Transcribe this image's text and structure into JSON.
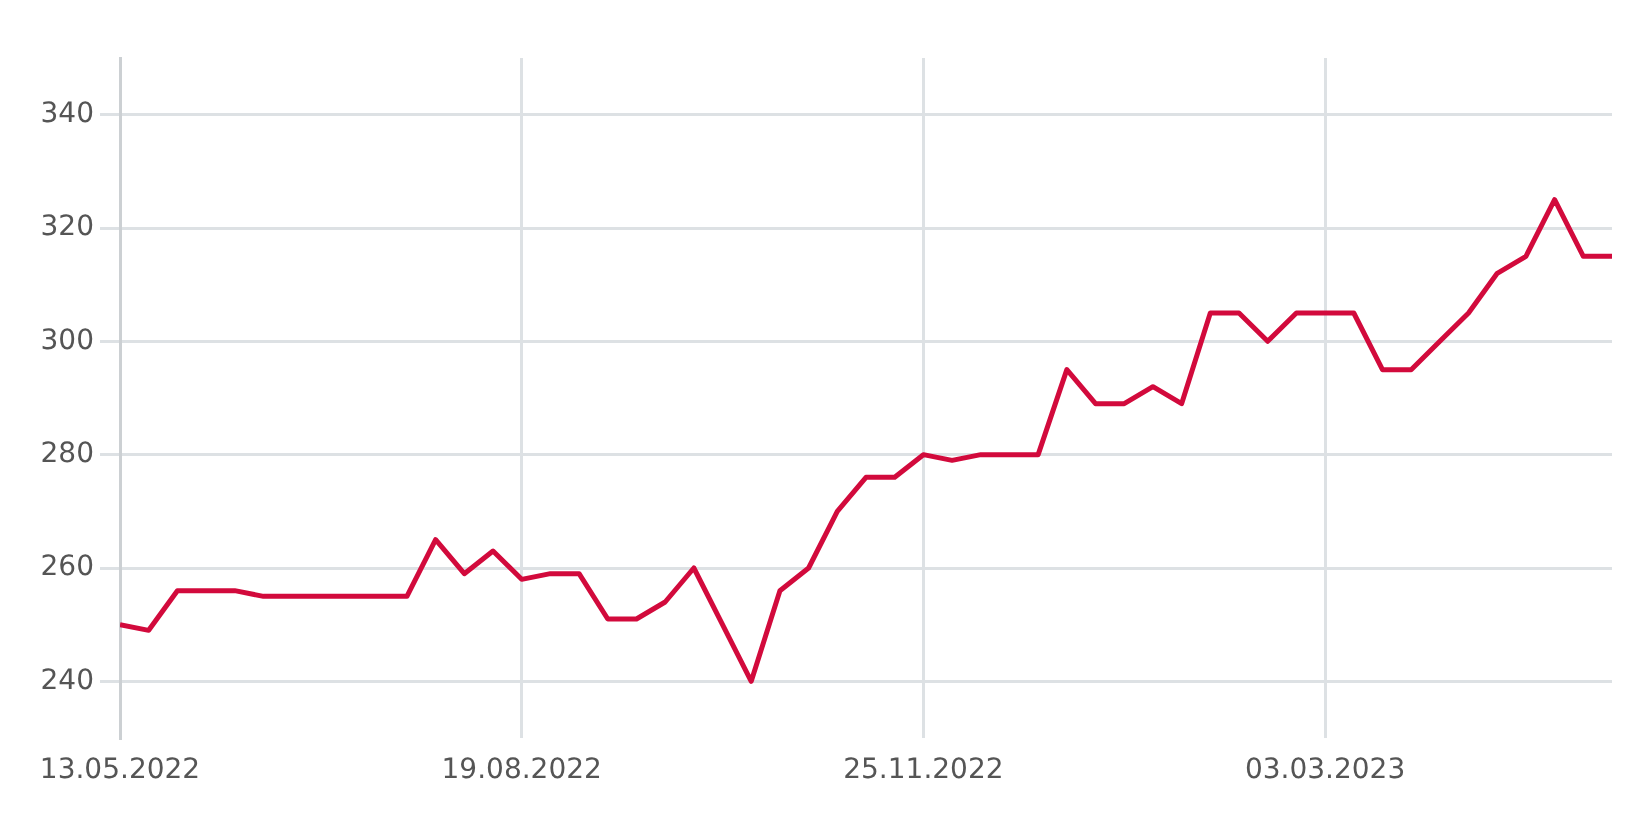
{
  "chart_data": {
    "type": "line",
    "x": [
      "2022-05-13",
      "2022-05-20",
      "2022-05-27",
      "2022-06-03",
      "2022-06-10",
      "2022-06-17",
      "2022-06-24",
      "2022-07-01",
      "2022-07-08",
      "2022-07-15",
      "2022-07-22",
      "2022-07-29",
      "2022-08-05",
      "2022-08-12",
      "2022-08-19",
      "2022-08-26",
      "2022-09-02",
      "2022-09-09",
      "2022-09-16",
      "2022-09-23",
      "2022-09-30",
      "2022-10-07",
      "2022-10-14",
      "2022-10-21",
      "2022-10-28",
      "2022-11-04",
      "2022-11-11",
      "2022-11-18",
      "2022-11-25",
      "2022-12-02",
      "2022-12-09",
      "2022-12-16",
      "2022-12-23",
      "2022-12-30",
      "2023-01-06",
      "2023-01-13",
      "2023-01-20",
      "2023-01-27",
      "2023-02-03",
      "2023-02-10",
      "2023-02-17",
      "2023-02-24",
      "2023-03-03",
      "2023-03-10",
      "2023-03-17",
      "2023-03-24",
      "2023-03-31",
      "2023-04-07",
      "2023-04-14",
      "2023-04-21",
      "2023-04-28",
      "2023-05-05",
      "2023-05-12"
    ],
    "series": [
      {
        "color": "#d20a3c",
        "values": [
          250,
          249,
          256,
          256,
          256,
          255,
          255,
          255,
          255,
          255,
          255,
          265,
          259,
          263,
          258,
          259,
          259,
          251,
          251,
          254,
          260,
          250,
          240,
          256,
          260,
          270,
          276,
          276,
          280,
          279,
          280,
          280,
          280,
          295,
          289,
          289,
          292,
          289,
          305,
          305,
          300,
          305,
          305,
          305,
          295,
          295,
          300,
          305,
          312,
          315,
          325,
          315,
          315
        ]
      }
    ],
    "xlim": [
      "2022-05-13",
      "2023-05-12"
    ],
    "xticks": [
      {
        "value": "2022-05-13",
        "label": "13.05.2022"
      },
      {
        "value": "2022-08-19",
        "label": "19.08.2022"
      },
      {
        "value": "2022-11-25",
        "label": "25.11.2022"
      },
      {
        "value": "2023-03-03",
        "label": "03.03.2023"
      }
    ],
    "ylim": [
      230,
      350
    ],
    "yticks": [
      240,
      260,
      280,
      300,
      320,
      340
    ],
    "grid": true,
    "legend": false,
    "marker": "none",
    "line_style": "solid"
  }
}
